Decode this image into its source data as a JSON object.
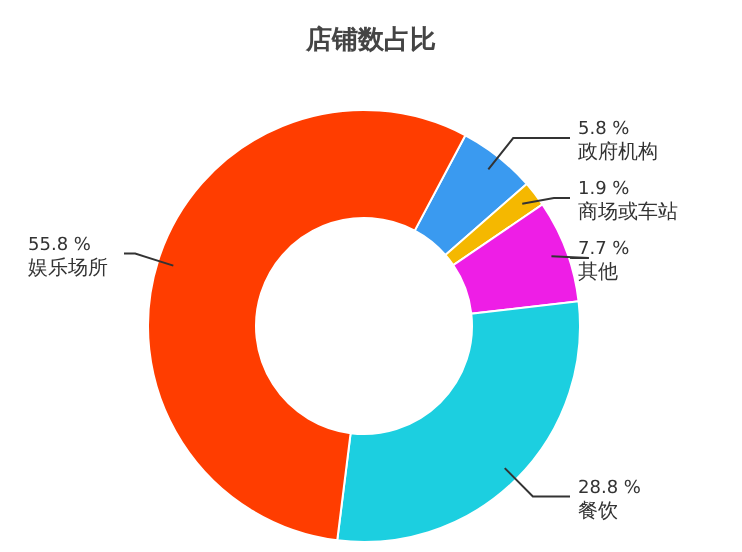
{
  "chart_data": {
    "type": "donut",
    "title": "店铺数占比",
    "categories": [
      "政府机构",
      "商场或车站",
      "其他",
      "餐饮",
      "娱乐场所"
    ],
    "values": [
      5.8,
      1.9,
      7.7,
      28.8,
      55.8
    ],
    "value_labels": [
      "5.8 %",
      "1.9 %",
      "7.7 %",
      "28.8 %",
      "55.8 %"
    ],
    "colors": [
      "#3a9af0",
      "#f5b800",
      "#ee1ee6",
      "#1ccfe0",
      "#ff3d00"
    ]
  }
}
